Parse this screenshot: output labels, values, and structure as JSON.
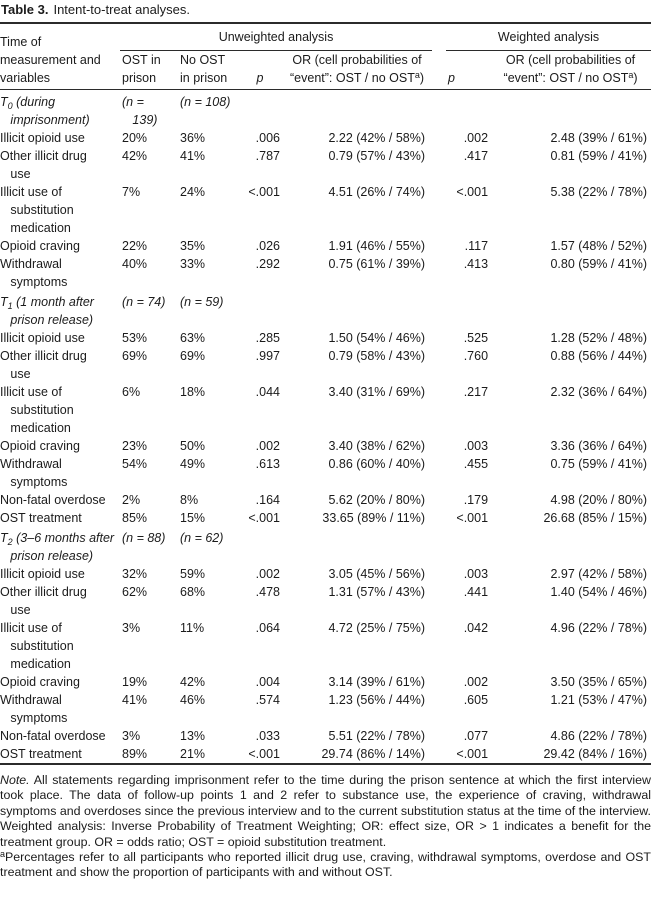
{
  "title": {
    "label": "Table 3.",
    "text": "Intent-to-treat analyses."
  },
  "header": {
    "row_header": "Time of\nmeasurement and\nvariables",
    "unweighted": "Unweighted analysis",
    "weighted": "Weighted analysis",
    "ost": "OST in\nprison",
    "no_ost": "No OST\nin prison",
    "p": "p",
    "or_line1": "OR (cell probabilities of",
    "or_line2": "“event”: OST / no OST",
    "or_sup": "a",
    "or_close": ")"
  },
  "table": {
    "rows": [
      {
        "type": "section",
        "t": "T",
        "sub": "0",
        "rest": " (during\n   imprisonment)",
        "n1": "(n =\n   139)",
        "n2": "(n = 108)"
      },
      {
        "type": "data",
        "label": "Illicit opioid use",
        "ost": "20%",
        "no_ost": "36%",
        "p": ".006",
        "or": "2.22 (42% / 58%)",
        "wp": ".002",
        "wor": "2.48 (39% / 61%)"
      },
      {
        "type": "data",
        "label": "Other illicit drug\n   use",
        "ost": "42%",
        "no_ost": "41%",
        "p": ".787",
        "or": "0.79 (57% / 43%)",
        "wp": ".417",
        "wor": "0.81 (59% / 41%)"
      },
      {
        "type": "data",
        "label": "Illicit use of\n   substitution\n   medication",
        "ost": "7%",
        "no_ost": "24%",
        "p": "<.001",
        "or": "4.51 (26% / 74%)",
        "wp": "<.001",
        "wor": "5.38 (22% / 78%)"
      },
      {
        "type": "data",
        "label": "Opioid craving",
        "ost": "22%",
        "no_ost": "35%",
        "p": ".026",
        "or": "1.91 (46% / 55%)",
        "wp": ".117",
        "wor": "1.57 (48% / 52%)"
      },
      {
        "type": "data",
        "label": "Withdrawal\n   symptoms",
        "ost": "40%",
        "no_ost": "33%",
        "p": ".292",
        "or": "0.75 (61% / 39%)",
        "wp": ".413",
        "wor": "0.80 (59% / 41%)"
      },
      {
        "type": "section",
        "t": "T",
        "sub": "1",
        "rest": " (1 month after\n   prison release)",
        "n1": "(n = 74)",
        "n2": "(n = 59)"
      },
      {
        "type": "data",
        "label": "Illicit opioid use",
        "ost": "53%",
        "no_ost": "63%",
        "p": ".285",
        "or": "1.50 (54% / 46%)",
        "wp": ".525",
        "wor": "1.28 (52% / 48%)"
      },
      {
        "type": "data",
        "label": "Other illicit drug\n   use",
        "ost": "69%",
        "no_ost": "69%",
        "p": ".997",
        "or": "0.79 (58% / 43%)",
        "wp": ".760",
        "wor": "0.88 (56% / 44%)"
      },
      {
        "type": "data",
        "label": "Illicit use of\n   substitution\n   medication",
        "ost": "6%",
        "no_ost": "18%",
        "p": ".044",
        "or": "3.40 (31% / 69%)",
        "wp": ".217",
        "wor": "2.32 (36% / 64%)"
      },
      {
        "type": "data",
        "label": "Opioid craving",
        "ost": "23%",
        "no_ost": "50%",
        "p": ".002",
        "or": "3.40 (38% / 62%)",
        "wp": ".003",
        "wor": "3.36 (36% / 64%)"
      },
      {
        "type": "data",
        "label": "Withdrawal\n   symptoms",
        "ost": "54%",
        "no_ost": "49%",
        "p": ".613",
        "or": "0.86 (60% / 40%)",
        "wp": ".455",
        "wor": "0.75 (59% / 41%)"
      },
      {
        "type": "data",
        "label": "Non-fatal overdose",
        "ost": "2%",
        "no_ost": "8%",
        "p": ".164",
        "or": "5.62 (20% / 80%)",
        "wp": ".179",
        "wor": "4.98 (20% / 80%)"
      },
      {
        "type": "data",
        "label": "OST treatment",
        "ost": "85%",
        "no_ost": "15%",
        "p": "<.001",
        "or": "33.65 (89% / 11%)",
        "wp": "<.001",
        "wor": "26.68 (85% / 15%)"
      },
      {
        "type": "section",
        "t": "T",
        "sub": "2",
        "rest": " (3–6 months after\n   prison release)",
        "n1": "(n = 88)",
        "n2": "(n = 62)"
      },
      {
        "type": "data",
        "label": "Illicit opioid use",
        "ost": "32%",
        "no_ost": "59%",
        "p": ".002",
        "or": "3.05 (45% / 56%)",
        "wp": ".003",
        "wor": "2.97 (42% / 58%)"
      },
      {
        "type": "data",
        "label": "Other illicit drug\n   use",
        "ost": "62%",
        "no_ost": "68%",
        "p": ".478",
        "or": "1.31 (57% / 43%)",
        "wp": ".441",
        "wor": "1.40 (54% / 46%)"
      },
      {
        "type": "data",
        "label": "Illicit use of\n   substitution\n   medication",
        "ost": "3%",
        "no_ost": "11%",
        "p": ".064",
        "or": "4.72 (25% / 75%)",
        "wp": ".042",
        "wor": "4.96 (22% / 78%)"
      },
      {
        "type": "data",
        "label": "Opioid craving",
        "ost": "19%",
        "no_ost": "42%",
        "p": ".004",
        "or": "3.14 (39% / 61%)",
        "wp": ".002",
        "wor": "3.50 (35% / 65%)"
      },
      {
        "type": "data",
        "label": "Withdrawal\n   symptoms",
        "ost": "41%",
        "no_ost": "46%",
        "p": ".574",
        "or": "1.23 (56% / 44%)",
        "wp": ".605",
        "wor": "1.21 (53% / 47%)"
      },
      {
        "type": "data",
        "label": "Non-fatal overdose",
        "ost": "3%",
        "no_ost": "13%",
        "p": ".033",
        "or": "5.51 (22% / 78%)",
        "wp": ".077",
        "wor": "4.86 (22% / 78%)"
      },
      {
        "type": "data",
        "label": "OST treatment",
        "ost": "89%",
        "no_ost": "21%",
        "p": "<.001",
        "or": "29.74 (86% / 14%)",
        "wp": "<.001",
        "wor": "29.42 (84% / 16%)"
      }
    ]
  },
  "notes": {
    "note_label": "Note.",
    "note_text": "All statements regarding imprisonment refer to the time during the prison sentence at which the first interview took place. The data of follow-up points 1 and 2 refer to substance use, the experience of craving, withdrawal symptoms and overdoses since the previous interview and to the current substitution status at the time of the interview. Weighted analysis: Inverse Probability of Treatment Weighting; OR: effect size, OR > 1 indicates a benefit for the treatment group. OR = odds ratio; OST = opioid substitution treatment.",
    "fn_sup": "a",
    "fn_text": "Percentages refer to all participants who reported illicit drug use, craving, withdrawal symptoms, overdose and OST treatment and show the proportion of participants with and without OST."
  }
}
